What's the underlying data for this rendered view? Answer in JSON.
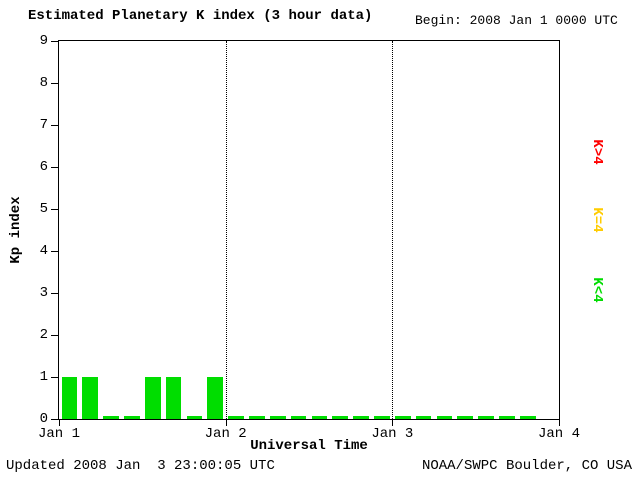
{
  "header": {
    "title": "Estimated Planetary K index (3 hour data)",
    "begin": "Begin: 2008 Jan 1 0000 UTC"
  },
  "chart_data": {
    "type": "bar",
    "title": "Estimated Planetary K index (3 hour data)",
    "xlabel": "Universal Time",
    "ylabel": "Kp index",
    "ylim": [
      0,
      9
    ],
    "y_ticks": [
      0,
      1,
      2,
      3,
      4,
      5,
      6,
      7,
      8,
      9
    ],
    "x_ticks": [
      "Jan 1",
      "Jan 2",
      "Jan 3",
      "Jan 4"
    ],
    "begin": "2008 Jan 1 0000 UTC",
    "interval_hours": 3,
    "values": [
      1,
      1,
      0,
      0,
      1,
      1,
      0,
      1,
      0,
      0,
      0,
      0,
      0,
      0,
      0,
      0,
      0,
      0,
      0,
      0,
      0,
      0,
      0
    ],
    "grid": "vertical-dotted-at-day-boundaries",
    "legend_position": "right-rotated",
    "colors": {
      "below4": "#00dd00",
      "equal4": "#ffcc00",
      "above4": "#ff0000"
    }
  },
  "legend": [
    {
      "label": "K>4",
      "color": "#ff0000"
    },
    {
      "label": "K=4",
      "color": "#ffcc00"
    },
    {
      "label": "K<4",
      "color": "#00dd00"
    }
  ],
  "footer": {
    "updated": "Updated 2008 Jan  3 23:00:05 UTC",
    "source": "NOAA/SWPC Boulder, CO USA"
  }
}
